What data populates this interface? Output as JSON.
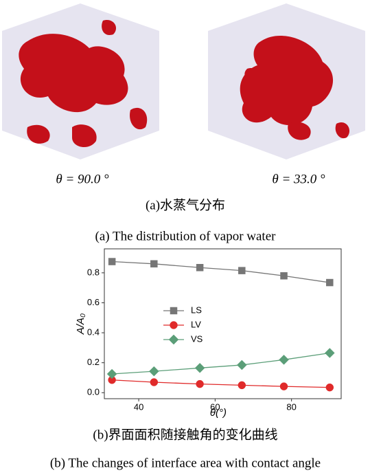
{
  "figure_a": {
    "left_label": "θ = 90.0 °",
    "right_label": "θ = 33.0 °",
    "caption_cn": "(a)水蒸气分布",
    "caption_en": "(a) The distribution of vapor water"
  },
  "chart_data": {
    "type": "line",
    "xlabel": "θ(°)",
    "ylabel": "A/A₀",
    "x": [
      33,
      44,
      56,
      67,
      78,
      90
    ],
    "series": [
      {
        "name": "LS",
        "color": "#767676",
        "marker": "square",
        "values": [
          0.875,
          0.86,
          0.835,
          0.815,
          0.78,
          0.735
        ]
      },
      {
        "name": "LV",
        "color": "#e02a2a",
        "marker": "circle",
        "values": [
          0.085,
          0.07,
          0.058,
          0.05,
          0.042,
          0.035
        ]
      },
      {
        "name": "VS",
        "color": "#5b9e78",
        "marker": "diamond",
        "values": [
          0.125,
          0.143,
          0.165,
          0.185,
          0.22,
          0.265
        ]
      }
    ],
    "xlim": [
      31,
      93
    ],
    "xticks": [
      40,
      60,
      80
    ],
    "ylim": [
      -0.04,
      0.96
    ],
    "yticks": [
      {
        "value": 0,
        "label": "0.0"
      },
      0.2,
      0.4,
      0.6,
      0.8
    ]
  },
  "figure_b": {
    "caption_cn": "(b)界面面积随接触角的变化曲线",
    "caption_en": "(b) The changes of interface area with contact angle"
  }
}
